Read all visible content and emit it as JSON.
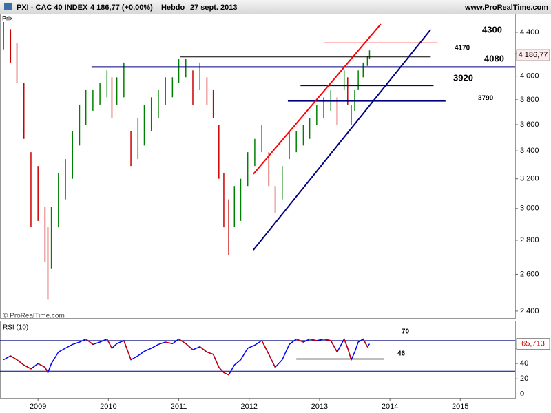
{
  "header": {
    "symbol": "PXI - CAC 40 INDEX",
    "quote": "4 186,77 (+0,00%)",
    "period": "Hebdo",
    "date": "27 sept. 2013",
    "site": "www.ProRealTime.com"
  },
  "chart_data": [
    {
      "type": "ohlc",
      "y_label": "Prix",
      "watermark": "© ProRealTime.com",
      "log_scale": true,
      "xlim": [
        2008.46,
        2015.78
      ],
      "ylim": [
        2364,
        4581
      ],
      "xticks": [
        2009,
        2010,
        2011,
        2012,
        2013,
        2014,
        2015
      ],
      "yticks": [
        {
          "value": 2400,
          "label": "2 400"
        },
        {
          "value": 2600,
          "label": "2 600"
        },
        {
          "value": 2800,
          "label": "2 800"
        },
        {
          "value": 3000,
          "label": "3 000"
        },
        {
          "value": 3200,
          "label": "3 200"
        },
        {
          "value": 3400,
          "label": "3 400"
        },
        {
          "value": 3600,
          "label": "3 600"
        },
        {
          "value": 3800,
          "label": "3 800"
        },
        {
          "value": 4000,
          "label": "4 000"
        },
        {
          "value": 4200,
          "label": "4 200"
        },
        {
          "value": 4400,
          "label": "4 400"
        }
      ],
      "up_color": "#008000",
      "down_color": "#cc0000",
      "x": [
        2008.51,
        2008.61,
        2008.7,
        2008.8,
        2008.9,
        2009.0,
        2009.1,
        2009.14,
        2009.19,
        2009.29,
        2009.39,
        2009.49,
        2009.59,
        2009.68,
        2009.78,
        2009.88,
        2009.98,
        2010.05,
        2010.12,
        2010.22,
        2010.32,
        2010.42,
        2010.51,
        2010.61,
        2010.71,
        2010.81,
        2010.91,
        2011.0,
        2011.1,
        2011.2,
        2011.3,
        2011.4,
        2011.49,
        2011.57,
        2011.64,
        2011.71,
        2011.79,
        2011.88,
        2011.98,
        2012.08,
        2012.18,
        2012.28,
        2012.37,
        2012.47,
        2012.57,
        2012.67,
        2012.77,
        2012.86,
        2012.96,
        2013.06,
        2013.16,
        2013.25,
        2013.35,
        2013.4,
        2013.45,
        2013.5,
        2013.55,
        2013.62,
        2013.68,
        2013.71
      ],
      "high": [
        4500,
        4430,
        4300,
        3940,
        3390,
        3290,
        3010,
        2880,
        3010,
        3240,
        3340,
        3550,
        3760,
        3880,
        3880,
        3940,
        4050,
        3990,
        3990,
        4120,
        3550,
        3650,
        3760,
        3820,
        3880,
        3990,
        3990,
        4150,
        4150,
        4050,
        4120,
        3990,
        3880,
        3600,
        3240,
        3060,
        3150,
        3200,
        3390,
        3490,
        3600,
        3390,
        3150,
        3290,
        3550,
        3550,
        3600,
        3650,
        3760,
        3820,
        3880,
        3820,
        4050,
        3990,
        3760,
        3880,
        4050,
        4120,
        4180,
        4230
      ],
      "low": [
        4240,
        4120,
        3940,
        3490,
        2880,
        2920,
        2670,
        2460,
        2630,
        2880,
        3060,
        3200,
        3440,
        3600,
        3710,
        3760,
        3820,
        3650,
        3760,
        3820,
        3290,
        3340,
        3440,
        3550,
        3650,
        3760,
        3820,
        3940,
        3990,
        3760,
        3880,
        3760,
        3650,
        3200,
        2880,
        2710,
        2880,
        2920,
        3150,
        3290,
        3390,
        3150,
        2970,
        3060,
        3340,
        3390,
        3440,
        3490,
        3600,
        3650,
        3710,
        3600,
        3880,
        3760,
        3600,
        3710,
        3880,
        3990,
        4090,
        4150
      ],
      "last": {
        "value": 4186.77,
        "label": "4 186,77"
      },
      "lines": [
        {
          "x": [
            2011.02,
            2014.58
          ],
          "y": [
            4170,
            4170
          ],
          "color": "#000000"
        },
        {
          "x": [
            2009.76,
            2015.78
          ],
          "y": [
            4080,
            4080
          ],
          "color": "#000080"
        },
        {
          "x": [
            2012.73,
            2014.62
          ],
          "y": [
            3920,
            3920
          ],
          "color": "#000080"
        },
        {
          "x": [
            2012.55,
            2014.79
          ],
          "y": [
            3790,
            3790
          ],
          "color": "#000080"
        },
        {
          "x": [
            2013.07,
            2014.68
          ],
          "y": [
            4300,
            4300
          ],
          "color": "#ff0000"
        },
        {
          "x": [
            2012.06,
            2013.87
          ],
          "y": [
            3233,
            4479
          ],
          "color": "#ff0000"
        },
        {
          "x": [
            2012.06,
            2014.58
          ],
          "y": [
            2741,
            4427
          ],
          "color": "#000080"
        }
      ],
      "annotations": [
        "4300",
        "4170",
        "4080",
        "3920",
        "3790"
      ]
    },
    {
      "type": "line",
      "title": "RSI (10)",
      "xlim": [
        2008.46,
        2015.78
      ],
      "ylim": [
        -5,
        96
      ],
      "yticks": [
        0,
        20,
        40,
        60
      ],
      "levels": [
        70,
        30
      ],
      "level_color": "#000080",
      "color": "#0000ff",
      "down_color": "#cc0000",
      "x": [
        2008.51,
        2008.61,
        2008.7,
        2008.8,
        2008.9,
        2009.0,
        2009.1,
        2009.14,
        2009.19,
        2009.29,
        2009.39,
        2009.49,
        2009.59,
        2009.68,
        2009.78,
        2009.88,
        2009.98,
        2010.05,
        2010.12,
        2010.22,
        2010.32,
        2010.42,
        2010.51,
        2010.61,
        2010.71,
        2010.81,
        2010.91,
        2011.0,
        2011.1,
        2011.2,
        2011.3,
        2011.4,
        2011.49,
        2011.57,
        2011.64,
        2011.71,
        2011.79,
        2011.88,
        2011.98,
        2012.08,
        2012.18,
        2012.28,
        2012.37,
        2012.47,
        2012.57,
        2012.67,
        2012.77,
        2012.86,
        2012.96,
        2013.06,
        2013.16,
        2013.25,
        2013.35,
        2013.4,
        2013.45,
        2013.5,
        2013.55,
        2013.62,
        2013.68,
        2013.71
      ],
      "values": [
        45,
        50,
        45,
        38,
        33,
        40,
        35,
        28,
        40,
        55,
        60,
        65,
        68,
        72,
        65,
        68,
        72,
        60,
        66,
        70,
        45,
        50,
        56,
        60,
        65,
        68,
        66,
        72,
        66,
        58,
        62,
        55,
        52,
        35,
        28,
        25,
        38,
        45,
        60,
        64,
        70,
        52,
        35,
        45,
        65,
        72,
        68,
        72,
        70,
        72,
        70,
        55,
        72,
        60,
        45,
        55,
        68,
        72,
        62,
        65.713
      ],
      "last": {
        "value": 65.713,
        "label": "65,713"
      },
      "lines": [
        {
          "x": [
            2012.67,
            2013.92
          ],
          "y": [
            46,
            46
          ],
          "color": "#000000"
        }
      ],
      "annotations": [
        "70",
        "46"
      ]
    }
  ]
}
